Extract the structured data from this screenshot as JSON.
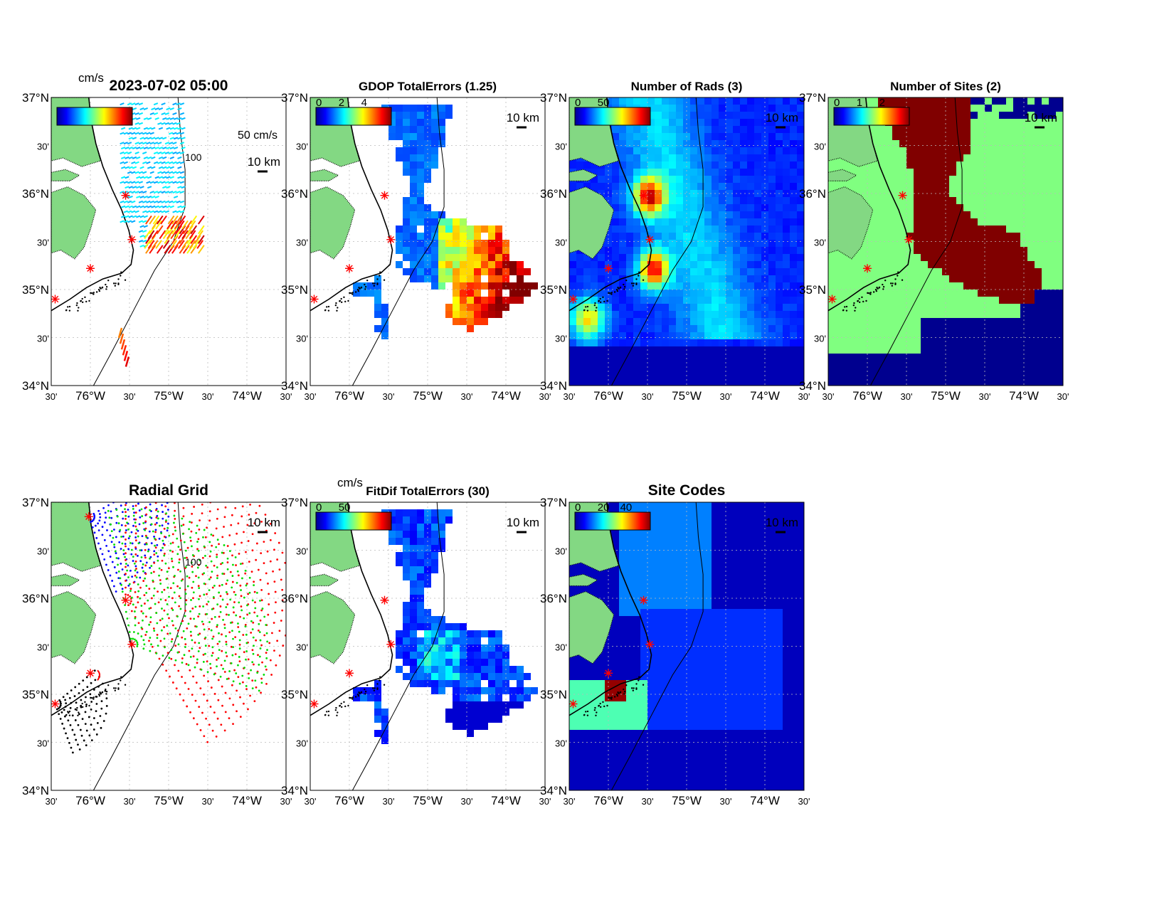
{
  "figure": {
    "timestamp": "2023-07-02 05:00",
    "axes": {
      "lat_labels": [
        "37°N",
        "30'",
        "36°N",
        "30'",
        "35°N",
        "30'",
        "34°N"
      ],
      "lon_labels": [
        "30'",
        "76°W",
        "30'",
        "75°W",
        "30'",
        "74°W",
        "30'"
      ],
      "extent": {
        "lat_min": 34.0,
        "lat_max": 37.0,
        "lon_min": -76.5,
        "lon_max": -73.5
      }
    },
    "scale_bar": "10 km",
    "reference_vector": "50 cm/s",
    "contour_label": "100",
    "colors": {
      "land": "#83d883",
      "ocean": "#ffffff",
      "jet_low": "#00008f",
      "jet_high": "#800000",
      "site_marker": "#ff0000",
      "sites_one": "#80ff80",
      "sites_two": "#800000"
    },
    "sites": [
      {
        "lat": 36.85,
        "lon": -76.02
      },
      {
        "lat": 35.98,
        "lon": -75.55
      },
      {
        "lat": 35.52,
        "lon": -75.47
      },
      {
        "lat": 35.22,
        "lon": -76.0
      },
      {
        "lat": 34.9,
        "lon": -76.45
      }
    ]
  },
  "panels": [
    {
      "key": "vectors",
      "title": "2023-07-02 05:00",
      "colorbar_unit": "cm/s",
      "colorbar_ticks": [],
      "colormap": "jet",
      "has_contour_100": true,
      "has_vector_scale": true
    },
    {
      "key": "gdop",
      "title": "GDOP TotalErrors (1.25)",
      "colorbar_unit": "",
      "colorbar_ticks": [
        "0",
        "2",
        "4"
      ],
      "colormap": "jet",
      "contour_label": "1.25"
    },
    {
      "key": "nrads",
      "title": "Number of Rads (3)",
      "colorbar_unit": "",
      "colorbar_ticks": [
        "0",
        "50"
      ],
      "colormap": "jet",
      "contour_label": "3"
    },
    {
      "key": "nsites",
      "title": "Number of Sites (2)",
      "colorbar_unit": "",
      "colorbar_ticks": [
        "0",
        "1",
        "2"
      ],
      "colormap": "jet"
    },
    {
      "key": "radgrid",
      "title": "Radial Grid",
      "colorbar_unit": "",
      "colorbar_ticks": [],
      "radial_colors": [
        "#0000ff",
        "#ff0000",
        "#00dd00",
        "#000000"
      ]
    },
    {
      "key": "fitdif",
      "title": "FitDif TotalErrors (30)",
      "colorbar_unit": "cm/s",
      "colorbar_ticks": [
        "0",
        "50"
      ],
      "colormap": "jet",
      "contour_label": "30"
    },
    {
      "key": "sitecodes",
      "title": "Site Codes",
      "colorbar_unit": "",
      "colorbar_ticks": [
        "0",
        "20",
        "40"
      ],
      "colormap": "jet"
    }
  ]
}
